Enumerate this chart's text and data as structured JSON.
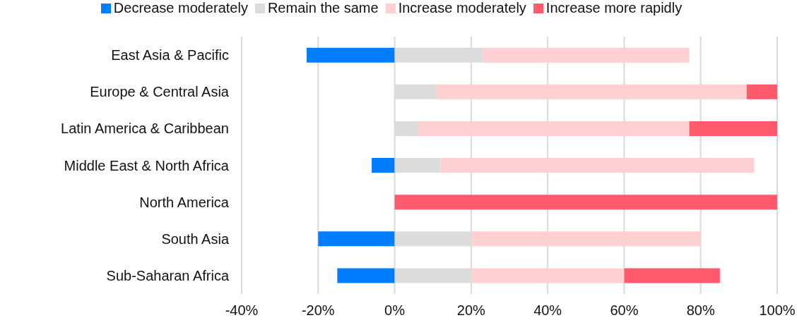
{
  "chart_data": {
    "type": "bar",
    "orientation": "horizontal",
    "stacked": true,
    "categories": [
      "East Asia & Pacific",
      "Europe & Central Asia",
      "Latin America & Caribbean",
      "Middle East & North Africa",
      "North America",
      "South Asia",
      "Sub-Saharan Africa"
    ],
    "series": [
      {
        "name": "Decrease moderately",
        "color": "#007eff",
        "values": [
          -23,
          0,
          0,
          -6,
          0,
          -20,
          -15
        ]
      },
      {
        "name": "Remain the same",
        "color": "#dcdcdc",
        "values": [
          23,
          11,
          6,
          12,
          0,
          20,
          20
        ]
      },
      {
        "name": "Increase moderately",
        "color": "#ffd0d1",
        "values": [
          54,
          81,
          71,
          82,
          0,
          60,
          40
        ]
      },
      {
        "name": "Increase more rapidly",
        "color": "#ff5a6b",
        "values": [
          0,
          8,
          23,
          0,
          100,
          0,
          25
        ]
      }
    ],
    "xlim": [
      -40,
      100
    ],
    "xticks": [
      {
        "value": -40,
        "label": "-40%"
      },
      {
        "value": -20,
        "label": "-20%"
      },
      {
        "value": 0,
        "label": "0%"
      },
      {
        "value": 20,
        "label": "20%"
      },
      {
        "value": 40,
        "label": "40%"
      },
      {
        "value": 60,
        "label": "60%"
      },
      {
        "value": 80,
        "label": "80%"
      },
      {
        "value": 100,
        "label": "100%"
      }
    ],
    "grid": "x",
    "legend": "top"
  }
}
